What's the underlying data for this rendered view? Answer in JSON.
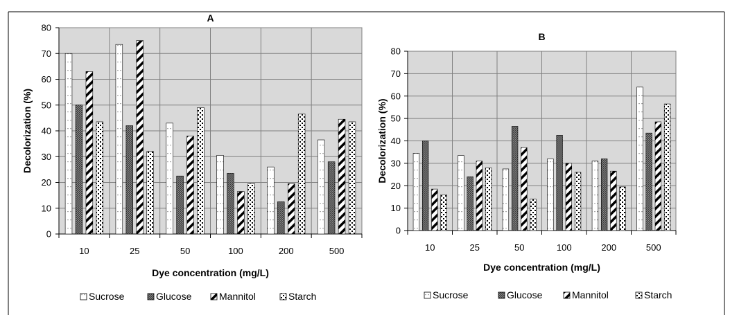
{
  "chart_data": [
    {
      "type": "bar",
      "title": "A",
      "xlabel": "Dye concentration (mg/L)",
      "ylabel": "Decolorization (%)",
      "ylim": [
        0,
        80
      ],
      "yticks": [
        0,
        10,
        20,
        30,
        40,
        50,
        60,
        70,
        80
      ],
      "categories": [
        "10",
        "25",
        "50",
        "100",
        "200",
        "500"
      ],
      "grid": true,
      "legend": "bottom",
      "series": [
        {
          "name": "Sucrose",
          "pattern": "dots",
          "values": [
            70,
            73.5,
            43,
            30.5,
            26,
            36.5
          ]
        },
        {
          "name": "Glucose",
          "pattern": "crosshatch",
          "values": [
            50,
            42,
            22.5,
            23.5,
            12.5,
            28
          ]
        },
        {
          "name": "Mannitol",
          "pattern": "diagonal",
          "values": [
            63,
            75,
            38,
            16.5,
            19.5,
            44.5
          ]
        },
        {
          "name": "Starch",
          "pattern": "checker",
          "values": [
            43.5,
            32,
            49,
            19.5,
            46.5,
            43.5
          ]
        }
      ]
    },
    {
      "type": "bar",
      "title": "B",
      "xlabel": "Dye concentration (mg/L)",
      "ylabel": "Decolorization (%)",
      "ylim": [
        0,
        80
      ],
      "yticks": [
        0,
        10,
        20,
        30,
        40,
        50,
        60,
        70,
        80
      ],
      "categories": [
        "10",
        "25",
        "50",
        "100",
        "200",
        "500"
      ],
      "grid": true,
      "legend": "bottom",
      "series": [
        {
          "name": "Sucrose",
          "pattern": "dots",
          "values": [
            34.5,
            33.5,
            27.5,
            32,
            31,
            64
          ]
        },
        {
          "name": "Glucose",
          "pattern": "crosshatch",
          "values": [
            40,
            24,
            46.5,
            42.5,
            32,
            43.5
          ]
        },
        {
          "name": "Mannitol",
          "pattern": "diagonal",
          "values": [
            18.5,
            31,
            37,
            30,
            26.5,
            48.5
          ]
        },
        {
          "name": "Starch",
          "pattern": "checker",
          "values": [
            16,
            28,
            14,
            26,
            19.5,
            56.5
          ]
        }
      ]
    }
  ]
}
